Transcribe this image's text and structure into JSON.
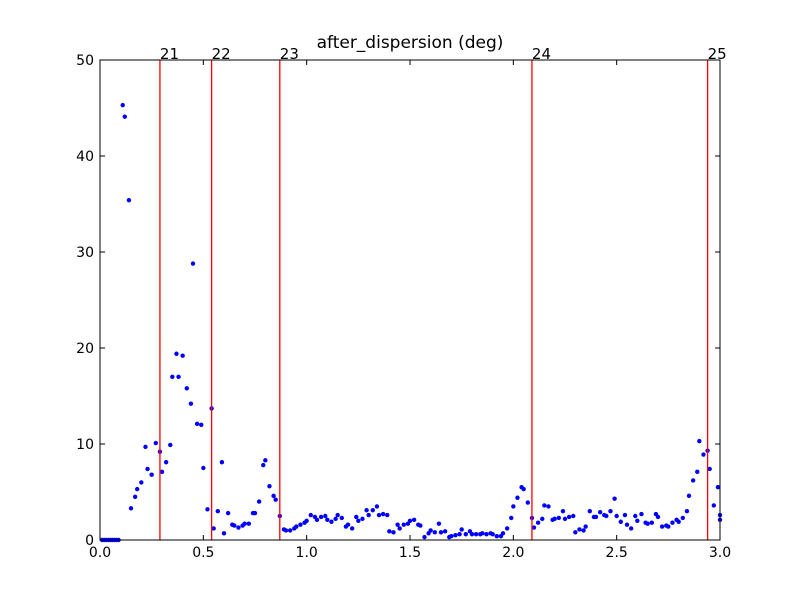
{
  "chart_data": {
    "type": "scatter",
    "title": "after_dispersion (deg)",
    "xlabel": "",
    "ylabel": "",
    "xlim": [
      0.0,
      3.0
    ],
    "ylim": [
      0,
      50
    ],
    "grid": false,
    "x_ticks": [
      0.0,
      0.5,
      1.0,
      1.5,
      2.0,
      2.5,
      3.0
    ],
    "x_tick_labels": [
      "0.0",
      "0.5",
      "1.0",
      "1.5",
      "2.0",
      "2.5",
      "3.0"
    ],
    "y_ticks": [
      0,
      10,
      20,
      30,
      40,
      50
    ],
    "y_tick_labels": [
      "0",
      "10",
      "20",
      "30",
      "40",
      "50"
    ],
    "colors": {
      "points": "#0000ff",
      "vlines": "#ff0000",
      "axes": "#000000"
    },
    "vertical_lines": [
      {
        "x": 0.29,
        "label": "21"
      },
      {
        "x": 0.54,
        "label": "22"
      },
      {
        "x": 0.87,
        "label": "23"
      },
      {
        "x": 2.09,
        "label": "24"
      },
      {
        "x": 2.94,
        "label": "25"
      }
    ],
    "points": [
      [
        0.01,
        0
      ],
      [
        0.02,
        0
      ],
      [
        0.03,
        0
      ],
      [
        0.04,
        0
      ],
      [
        0.05,
        0
      ],
      [
        0.06,
        0
      ],
      [
        0.07,
        0
      ],
      [
        0.08,
        0
      ],
      [
        0.09,
        0
      ],
      [
        0.11,
        45.3
      ],
      [
        0.12,
        44.1
      ],
      [
        0.14,
        35.4
      ],
      [
        0.15,
        3.3
      ],
      [
        0.17,
        4.5
      ],
      [
        0.18,
        5.3
      ],
      [
        0.2,
        6.0
      ],
      [
        0.22,
        9.7
      ],
      [
        0.23,
        7.4
      ],
      [
        0.25,
        6.8
      ],
      [
        0.27,
        10.1
      ],
      [
        0.29,
        9.2
      ],
      [
        0.3,
        7.1
      ],
      [
        0.32,
        8.1
      ],
      [
        0.34,
        9.9
      ],
      [
        0.35,
        17.0
      ],
      [
        0.37,
        19.4
      ],
      [
        0.38,
        17.0
      ],
      [
        0.4,
        19.2
      ],
      [
        0.42,
        15.8
      ],
      [
        0.44,
        14.2
      ],
      [
        0.45,
        28.8
      ],
      [
        0.47,
        12.1
      ],
      [
        0.49,
        12.0
      ],
      [
        0.5,
        7.5
      ],
      [
        0.52,
        3.2
      ],
      [
        0.54,
        13.7
      ],
      [
        0.55,
        1.2
      ],
      [
        0.57,
        3.0
      ],
      [
        0.59,
        8.1
      ],
      [
        0.6,
        0.7
      ],
      [
        0.62,
        2.8
      ],
      [
        0.64,
        1.6
      ],
      [
        0.65,
        1.5
      ],
      [
        0.67,
        1.3
      ],
      [
        0.69,
        1.5
      ],
      [
        0.7,
        1.7
      ],
      [
        0.72,
        1.7
      ],
      [
        0.74,
        2.8
      ],
      [
        0.75,
        2.8
      ],
      [
        0.77,
        4.0
      ],
      [
        0.79,
        7.8
      ],
      [
        0.8,
        8.3
      ],
      [
        0.82,
        5.6
      ],
      [
        0.84,
        4.6
      ],
      [
        0.85,
        4.2
      ],
      [
        0.87,
        2.5
      ],
      [
        0.89,
        1.1
      ],
      [
        0.9,
        1.0
      ],
      [
        0.92,
        1.0
      ],
      [
        0.94,
        1.2
      ],
      [
        0.95,
        1.4
      ],
      [
        0.97,
        1.6
      ],
      [
        0.99,
        1.8
      ],
      [
        1.0,
        2.0
      ],
      [
        1.02,
        2.6
      ],
      [
        1.04,
        2.4
      ],
      [
        1.05,
        2.1
      ],
      [
        1.07,
        2.4
      ],
      [
        1.09,
        2.5
      ],
      [
        1.1,
        2.1
      ],
      [
        1.12,
        1.9
      ],
      [
        1.14,
        2.2
      ],
      [
        1.15,
        2.6
      ],
      [
        1.17,
        2.3
      ],
      [
        1.19,
        1.4
      ],
      [
        1.2,
        1.6
      ],
      [
        1.22,
        1.2
      ],
      [
        1.24,
        2.4
      ],
      [
        1.25,
        2.0
      ],
      [
        1.27,
        2.2
      ],
      [
        1.29,
        3.1
      ],
      [
        1.3,
        2.6
      ],
      [
        1.32,
        3.1
      ],
      [
        1.34,
        3.5
      ],
      [
        1.35,
        2.6
      ],
      [
        1.37,
        2.7
      ],
      [
        1.39,
        2.6
      ],
      [
        1.4,
        0.9
      ],
      [
        1.42,
        0.8
      ],
      [
        1.44,
        1.6
      ],
      [
        1.45,
        1.2
      ],
      [
        1.47,
        1.6
      ],
      [
        1.49,
        1.7
      ],
      [
        1.5,
        2.0
      ],
      [
        1.52,
        2.1
      ],
      [
        1.54,
        1.6
      ],
      [
        1.55,
        1.5
      ],
      [
        1.57,
        0.3
      ],
      [
        1.59,
        0.7
      ],
      [
        1.6,
        1.0
      ],
      [
        1.62,
        0.8
      ],
      [
        1.64,
        1.7
      ],
      [
        1.65,
        0.8
      ],
      [
        1.67,
        0.9
      ],
      [
        1.69,
        0.3
      ],
      [
        1.7,
        0.4
      ],
      [
        1.72,
        0.5
      ],
      [
        1.74,
        0.6
      ],
      [
        1.75,
        1.1
      ],
      [
        1.77,
        0.6
      ],
      [
        1.79,
        0.9
      ],
      [
        1.8,
        0.6
      ],
      [
        1.82,
        0.6
      ],
      [
        1.84,
        0.6
      ],
      [
        1.85,
        0.7
      ],
      [
        1.87,
        0.6
      ],
      [
        1.89,
        0.7
      ],
      [
        1.9,
        0.6
      ],
      [
        1.92,
        0.4
      ],
      [
        1.94,
        0.4
      ],
      [
        1.95,
        0.7
      ],
      [
        1.97,
        1.2
      ],
      [
        1.99,
        2.3
      ],
      [
        2.0,
        3.5
      ],
      [
        2.02,
        4.4
      ],
      [
        2.04,
        5.5
      ],
      [
        2.05,
        5.3
      ],
      [
        2.07,
        3.9
      ],
      [
        2.09,
        2.3
      ],
      [
        2.1,
        1.3
      ],
      [
        2.12,
        1.8
      ],
      [
        2.14,
        2.2
      ],
      [
        2.15,
        3.6
      ],
      [
        2.17,
        3.5
      ],
      [
        2.19,
        2.1
      ],
      [
        2.2,
        2.2
      ],
      [
        2.22,
        2.3
      ],
      [
        2.24,
        3.0
      ],
      [
        2.25,
        2.2
      ],
      [
        2.27,
        2.4
      ],
      [
        2.29,
        2.5
      ],
      [
        2.3,
        0.8
      ],
      [
        2.32,
        1.1
      ],
      [
        2.34,
        1.0
      ],
      [
        2.35,
        1.4
      ],
      [
        2.37,
        3.0
      ],
      [
        2.39,
        2.4
      ],
      [
        2.4,
        2.4
      ],
      [
        2.42,
        2.9
      ],
      [
        2.44,
        2.6
      ],
      [
        2.45,
        2.5
      ],
      [
        2.47,
        3.0
      ],
      [
        2.49,
        4.3
      ],
      [
        2.5,
        2.5
      ],
      [
        2.52,
        1.9
      ],
      [
        2.54,
        2.6
      ],
      [
        2.55,
        1.6
      ],
      [
        2.57,
        1.2
      ],
      [
        2.59,
        2.5
      ],
      [
        2.6,
        2.0
      ],
      [
        2.62,
        2.7
      ],
      [
        2.64,
        1.8
      ],
      [
        2.65,
        1.7
      ],
      [
        2.67,
        1.8
      ],
      [
        2.69,
        2.7
      ],
      [
        2.7,
        2.4
      ],
      [
        2.72,
        1.4
      ],
      [
        2.74,
        1.5
      ],
      [
        2.75,
        1.4
      ],
      [
        2.77,
        1.8
      ],
      [
        2.79,
        2.1
      ],
      [
        2.8,
        1.9
      ],
      [
        2.82,
        2.3
      ],
      [
        2.84,
        3.0
      ],
      [
        2.85,
        4.6
      ],
      [
        2.87,
        6.2
      ],
      [
        2.89,
        7.1
      ],
      [
        2.9,
        10.3
      ],
      [
        2.92,
        8.9
      ],
      [
        2.94,
        9.3
      ],
      [
        2.95,
        7.4
      ],
      [
        2.97,
        3.6
      ],
      [
        2.99,
        5.5
      ],
      [
        3.0,
        2.1
      ],
      [
        3.02,
        2.6
      ]
    ]
  }
}
